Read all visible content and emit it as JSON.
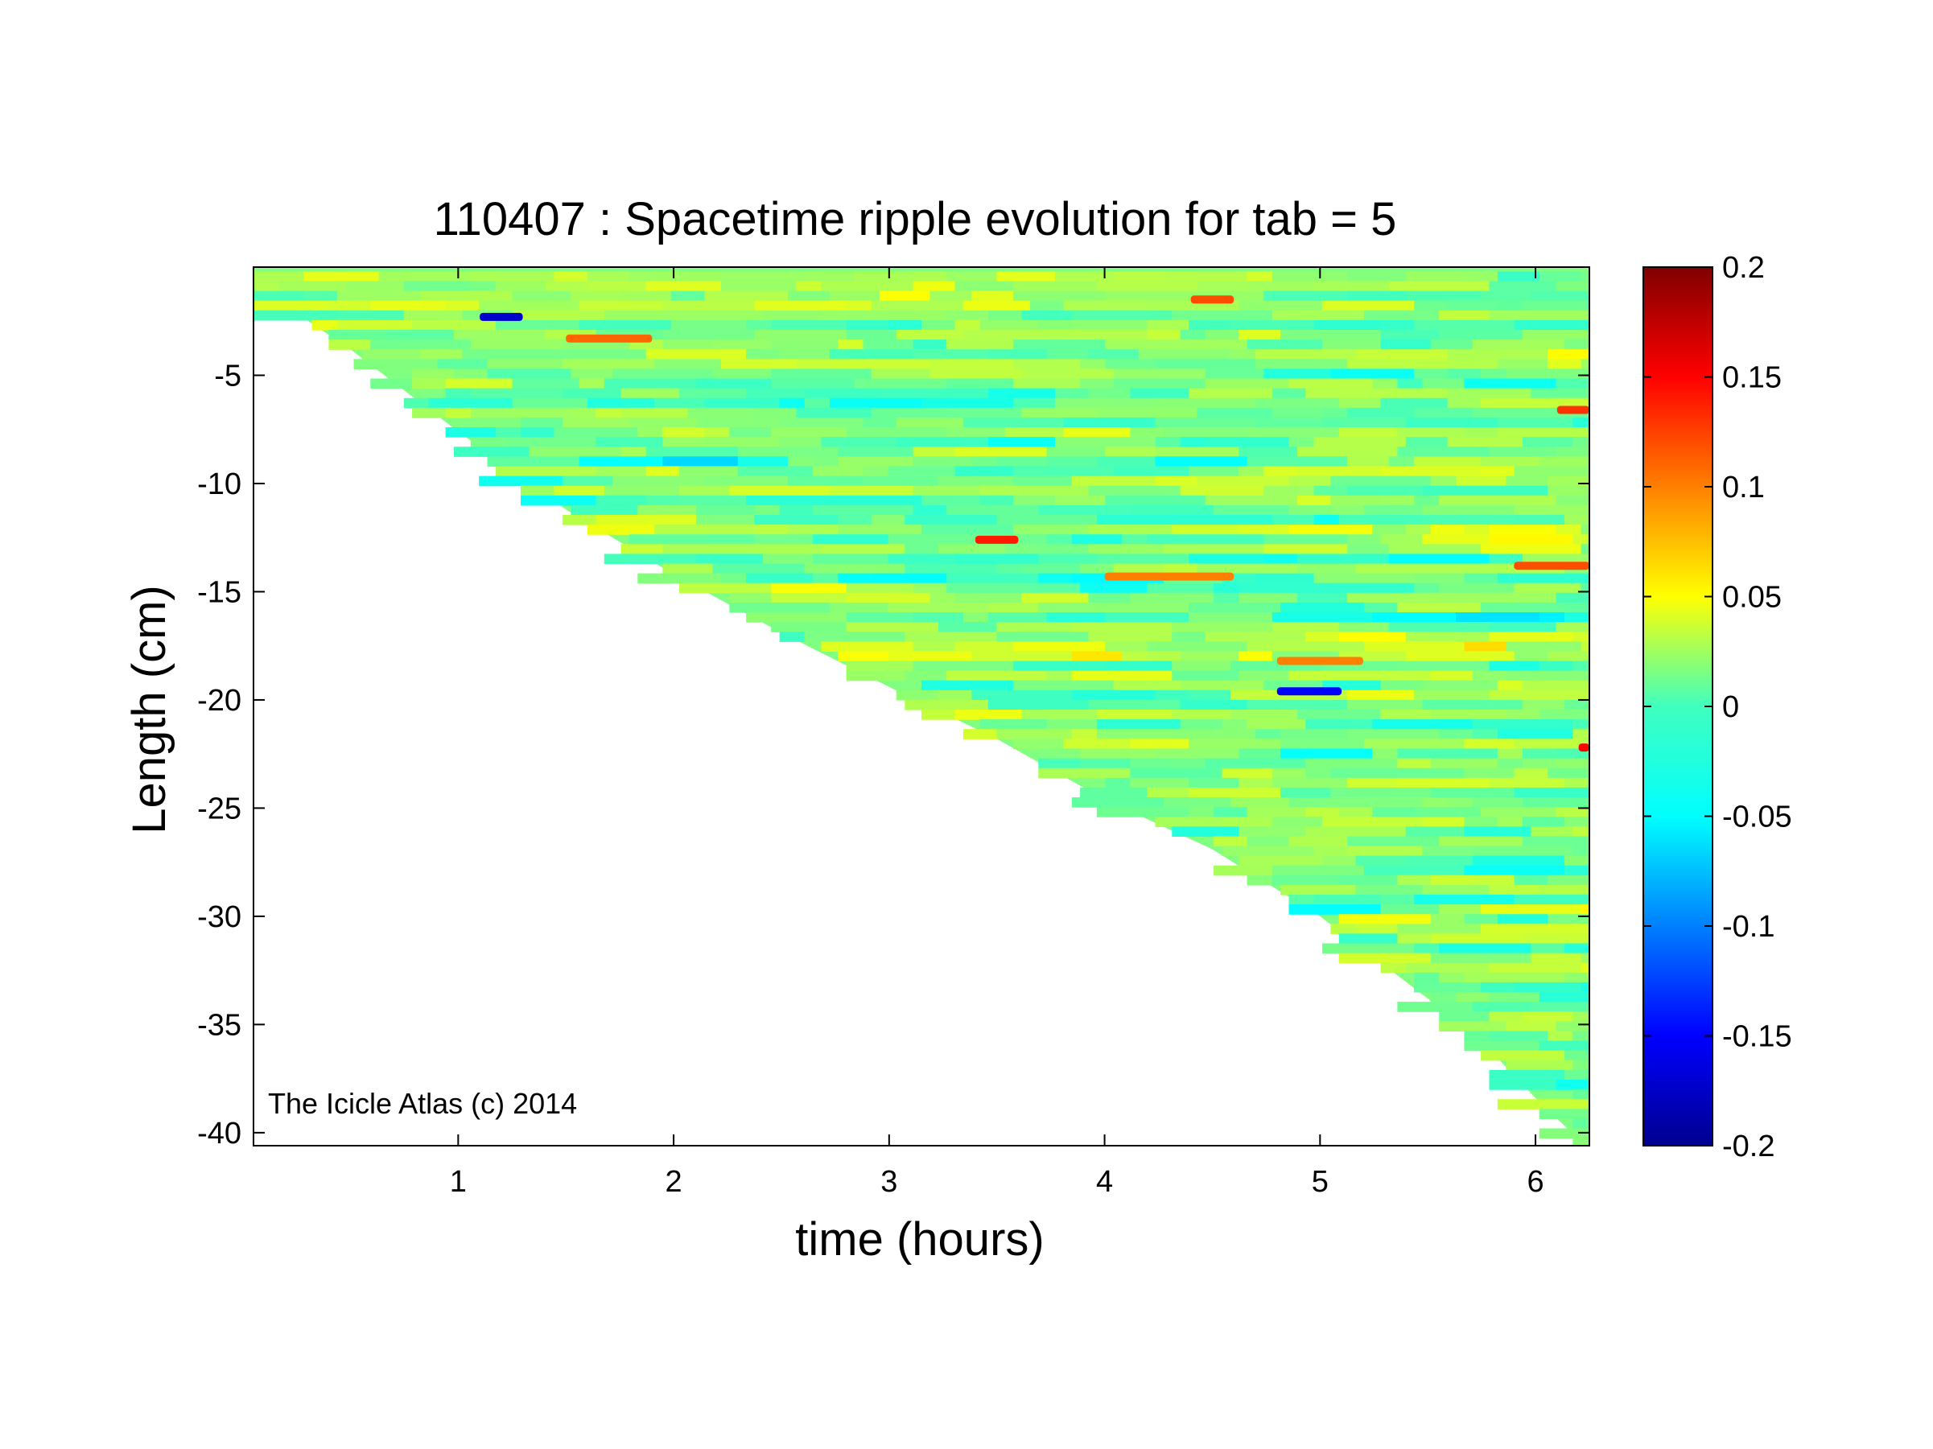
{
  "chart_data": {
    "type": "heatmap",
    "title": "110407 : Spacetime ripple evolution for tab = 5",
    "xlabel": "time (hours)",
    "ylabel": "Length (cm)",
    "xlim": [
      0.05,
      6.25
    ],
    "ylim": [
      -40.6,
      0.0
    ],
    "x_ticks": [
      1,
      2,
      3,
      4,
      5,
      6
    ],
    "x_tick_labels": [
      "1",
      "2",
      "3",
      "4",
      "5",
      "6"
    ],
    "y_ticks": [
      -5,
      -10,
      -15,
      -20,
      -25,
      -30,
      -35,
      -40
    ],
    "y_tick_labels": [
      "-5",
      "-10",
      "-15",
      "-20",
      "-25",
      "-30",
      "-35",
      "-40"
    ],
    "colorbar": {
      "colormap": "jet",
      "clim": [
        -0.2,
        0.2
      ],
      "ticks": [
        0.2,
        0.15,
        0.1,
        0.05,
        0,
        -0.05,
        -0.1,
        -0.15,
        -0.2
      ],
      "tick_labels": [
        "0.2",
        "0.15",
        "0.1",
        "0.05",
        "0",
        "-0.05",
        "-0.1",
        "-0.15",
        "-0.2"
      ]
    },
    "coverage_boundary": {
      "description_points_time_hours": [
        0.05,
        0.5,
        1.0,
        1.5,
        2.0,
        2.5,
        3.0,
        3.5,
        4.0,
        4.5,
        5.0,
        5.5,
        5.8,
        6.0,
        6.2
      ],
      "length_cm": [
        -0.8,
        -3.8,
        -7.6,
        -11.2,
        -14.2,
        -16.9,
        -19.4,
        -21.8,
        -24.6,
        -26.9,
        -30.0,
        -33.8,
        -36.3,
        -38.4,
        -40.3
      ]
    },
    "base_value": 0.0,
    "notable_features": [
      {
        "time": [
          4.4,
          4.6
        ],
        "length": -1.5,
        "value": 0.12
      },
      {
        "time": [
          1.1,
          1.3
        ],
        "length": -2.3,
        "value": -0.17
      },
      {
        "time": [
          1.5,
          1.9
        ],
        "length": -3.3,
        "value": 0.11
      },
      {
        "time": [
          6.1,
          6.25
        ],
        "length": -6.6,
        "value": 0.13
      },
      {
        "time": [
          3.4,
          3.6
        ],
        "length": -12.6,
        "value": 0.14
      },
      {
        "time": [
          5.9,
          6.25
        ],
        "length": -13.8,
        "value": 0.12
      },
      {
        "time": [
          4.0,
          4.6
        ],
        "length": -14.3,
        "value": 0.1
      },
      {
        "time": [
          4.8,
          5.2
        ],
        "length": -18.2,
        "value": 0.1
      },
      {
        "time": [
          4.8,
          5.1
        ],
        "length": -19.6,
        "value": -0.15
      },
      {
        "time": [
          6.2,
          6.25
        ],
        "length": -22.2,
        "value": 0.15
      }
    ]
  },
  "annotation": "The Icicle Atlas (c) 2014"
}
